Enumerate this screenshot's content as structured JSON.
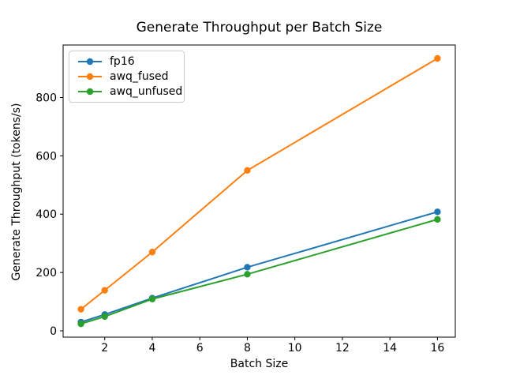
{
  "chart_data": {
    "type": "line",
    "title": "Generate Throughput per Batch Size",
    "xlabel": "Batch Size",
    "ylabel": "Generate Throughput (tokens/s)",
    "x": [
      1,
      2,
      4,
      8,
      16
    ],
    "series": [
      {
        "name": "fp16",
        "color": "#1f77b4",
        "values": [
          30,
          56,
          112,
          218,
          408
        ]
      },
      {
        "name": "awq_fused",
        "color": "#ff7f0e",
        "values": [
          74,
          139,
          270,
          550,
          934
        ]
      },
      {
        "name": "awq_unfused",
        "color": "#2ca02c",
        "values": [
          24,
          49,
          109,
          194,
          382
        ]
      }
    ],
    "xlim": [
      0.25,
      16.75
    ],
    "ylim": [
      -21.7,
      980
    ],
    "xticks": [
      2,
      4,
      6,
      8,
      10,
      12,
      14,
      16
    ],
    "yticks": [
      0,
      200,
      400,
      600,
      800
    ],
    "legend_position": "upper left",
    "grid": false,
    "marker": "o",
    "axis_color": "#000000",
    "background_color": "#ffffff"
  }
}
